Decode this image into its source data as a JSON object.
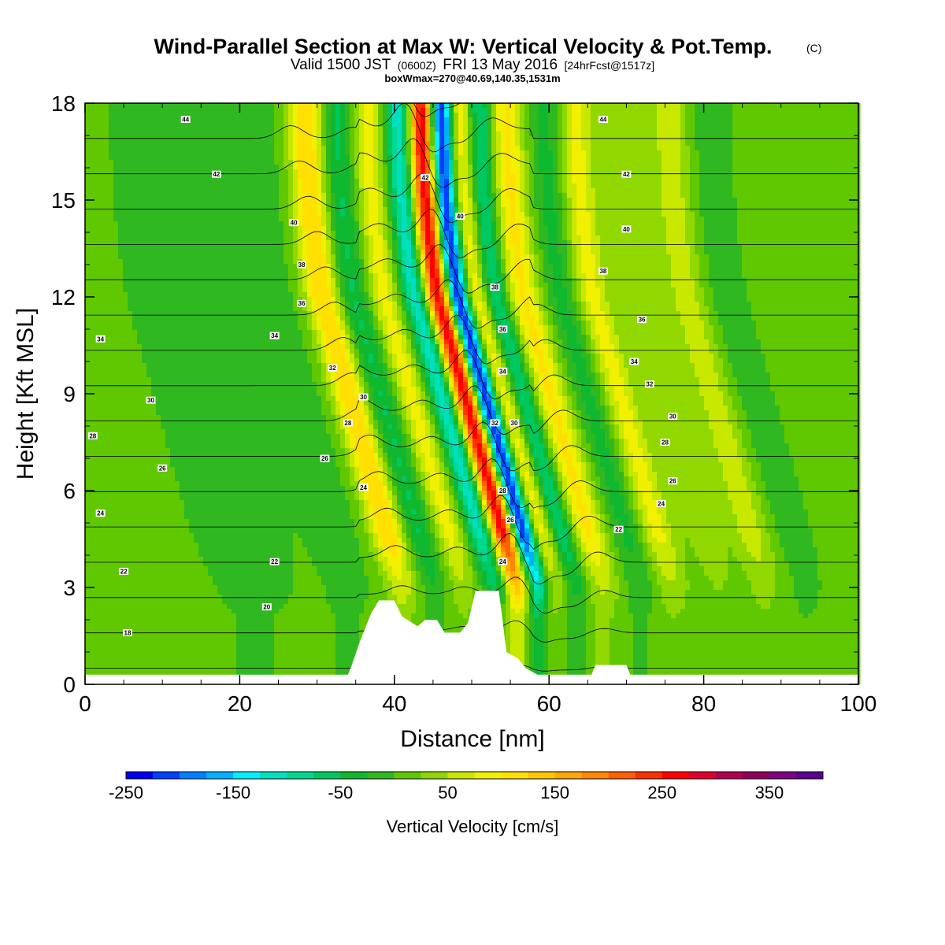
{
  "header": {
    "title": "Wind-Parallel Section at Max W: Vertical Velocity & Pot.Temp.",
    "title_mark": "(C)",
    "valid_prefix": "Valid 1500 JST",
    "valid_utc": "(0600Z)",
    "valid_date": "FRI 13 May 2016",
    "forecast": "[24hrFcst@1517z]",
    "box_info": "boxWmax=270@40.69,140.35,1531m"
  },
  "chart_data": {
    "type": "heatmap",
    "title": "Wind-Parallel Section at Max W: Vertical Velocity & Pot.Temp.",
    "xlabel": "Distance [nm]",
    "ylabel": "Height [Kft MSL]",
    "xlim": [
      0,
      100
    ],
    "ylim": [
      0,
      18
    ],
    "x_ticks": [
      0,
      20,
      40,
      60,
      80,
      100
    ],
    "x_tick_labels": [
      "0",
      "20",
      "40",
      "60",
      "80",
      "100"
    ],
    "y_ticks": [
      0,
      3,
      6,
      9,
      12,
      15,
      18
    ],
    "y_tick_labels": [
      "0",
      "3",
      "6",
      "9",
      "12",
      "15",
      "18"
    ],
    "grid": false,
    "background_w": 5,
    "w_bands": [
      {
        "x": 22,
        "w": -25,
        "width": 5
      },
      {
        "x": 34,
        "w": -25,
        "width": 3
      },
      {
        "x": 41,
        "w": 120,
        "width": 2.2
      },
      {
        "x": 45,
        "w": -60,
        "width": 1.8
      },
      {
        "x": 49,
        "w": 80,
        "width": 1.8
      },
      {
        "x": 53,
        "w": -120,
        "width": 1.6
      },
      {
        "x": 56,
        "w": 270,
        "width": 1.6
      },
      {
        "x": 58.5,
        "w": -250,
        "width": 1.4
      },
      {
        "x": 61,
        "w": 90,
        "width": 1.6
      },
      {
        "x": 63.5,
        "w": -90,
        "width": 1.6
      },
      {
        "x": 67,
        "w": 100,
        "width": 2.2
      },
      {
        "x": 72,
        "w": -40,
        "width": 2
      },
      {
        "x": 76,
        "w": 80,
        "width": 2.2
      },
      {
        "x": 82,
        "w": 40,
        "width": 2.5
      },
      {
        "x": 88,
        "w": 60,
        "width": 2.5
      },
      {
        "x": 93,
        "w": -20,
        "width": 2.5
      }
    ],
    "colorbar": {
      "label": "Vertical Velocity [cm/s]",
      "min": -250,
      "max": 400,
      "step": 25,
      "tick_values": [
        -250,
        -150,
        -50,
        50,
        150,
        250,
        350
      ],
      "tick_labels": [
        "-250",
        "-150",
        "-50",
        "50",
        "150",
        "250",
        "350"
      ],
      "colors": [
        "#0000f0",
        "#0040ff",
        "#0080ff",
        "#00b0ff",
        "#00f0ff",
        "#00e0c0",
        "#00d890",
        "#00c860",
        "#10b830",
        "#30b820",
        "#60c800",
        "#90d800",
        "#c8e800",
        "#f0f000",
        "#ffe000",
        "#ffc800",
        "#ffa800",
        "#ff8800",
        "#ff6000",
        "#ff3000",
        "#ff0000",
        "#e00030",
        "#b00050",
        "#900060",
        "#800080",
        "#5a0090"
      ]
    },
    "terrain": [
      [
        0,
        0.3
      ],
      [
        34,
        0.3
      ],
      [
        34.5,
        0.6
      ],
      [
        35.5,
        1.3
      ],
      [
        37,
        2.2
      ],
      [
        38,
        2.6
      ],
      [
        40,
        2.6
      ],
      [
        41,
        2.1
      ],
      [
        43,
        1.8
      ],
      [
        44,
        2.0
      ],
      [
        45.5,
        2.0
      ],
      [
        46.5,
        1.6
      ],
      [
        48.5,
        1.6
      ],
      [
        49.5,
        1.9
      ],
      [
        50.5,
        2.9
      ],
      [
        53.5,
        2.9
      ],
      [
        54.5,
        1.0
      ],
      [
        56,
        0.8
      ],
      [
        57,
        0.5
      ],
      [
        58.5,
        0.3
      ],
      [
        65.5,
        0.3
      ],
      [
        66,
        0.6
      ],
      [
        70,
        0.6
      ],
      [
        70.5,
        0.3
      ],
      [
        100,
        0.3
      ]
    ],
    "theta_contours": {
      "min": 14,
      "max": 46,
      "interval": 2,
      "labels": [
        {
          "v": "44",
          "x": 13,
          "y": 17.5
        },
        {
          "v": "42",
          "x": 17,
          "y": 15.8
        },
        {
          "v": "40",
          "x": 27,
          "y": 14.3
        },
        {
          "v": "38",
          "x": 28,
          "y": 13.0
        },
        {
          "v": "36",
          "x": 28,
          "y": 11.8
        },
        {
          "v": "34",
          "x": 2,
          "y": 10.7
        },
        {
          "v": "34",
          "x": 24.5,
          "y": 10.8
        },
        {
          "v": "32",
          "x": 32,
          "y": 9.8
        },
        {
          "v": "30",
          "x": 8.5,
          "y": 8.8
        },
        {
          "v": "30",
          "x": 36,
          "y": 8.9
        },
        {
          "v": "28",
          "x": 1,
          "y": 7.7
        },
        {
          "v": "28",
          "x": 34,
          "y": 8.1
        },
        {
          "v": "26",
          "x": 10,
          "y": 6.7
        },
        {
          "v": "26",
          "x": 31,
          "y": 7.0
        },
        {
          "v": "24",
          "x": 2,
          "y": 5.3
        },
        {
          "v": "24",
          "x": 36,
          "y": 6.1
        },
        {
          "v": "22",
          "x": 5,
          "y": 3.5
        },
        {
          "v": "22",
          "x": 24.5,
          "y": 3.8
        },
        {
          "v": "20",
          "x": 23.5,
          "y": 2.4
        },
        {
          "v": "18",
          "x": 5.5,
          "y": 1.6
        },
        {
          "v": "42",
          "x": 44,
          "y": 15.7
        },
        {
          "v": "40",
          "x": 48.5,
          "y": 14.5
        },
        {
          "v": "38",
          "x": 53,
          "y": 12.3
        },
        {
          "v": "36",
          "x": 54,
          "y": 11.0
        },
        {
          "v": "34",
          "x": 54,
          "y": 9.7
        },
        {
          "v": "32",
          "x": 53,
          "y": 8.1
        },
        {
          "v": "30",
          "x": 55.5,
          "y": 8.1
        },
        {
          "v": "28",
          "x": 54,
          "y": 6.0
        },
        {
          "v": "26",
          "x": 55,
          "y": 5.1
        },
        {
          "v": "24",
          "x": 54,
          "y": 3.8
        },
        {
          "v": "44",
          "x": 67,
          "y": 17.5
        },
        {
          "v": "42",
          "x": 70,
          "y": 15.8
        },
        {
          "v": "40",
          "x": 70,
          "y": 14.1
        },
        {
          "v": "38",
          "x": 67,
          "y": 12.8
        },
        {
          "v": "36",
          "x": 72,
          "y": 11.3
        },
        {
          "v": "34",
          "x": 71,
          "y": 10.0
        },
        {
          "v": "32",
          "x": 73,
          "y": 9.3
        },
        {
          "v": "30",
          "x": 76,
          "y": 8.3
        },
        {
          "v": "28",
          "x": 75,
          "y": 7.5
        },
        {
          "v": "26",
          "x": 76,
          "y": 6.3
        },
        {
          "v": "24",
          "x": 74.5,
          "y": 5.6
        },
        {
          "v": "22",
          "x": 69,
          "y": 4.8
        }
      ]
    }
  }
}
